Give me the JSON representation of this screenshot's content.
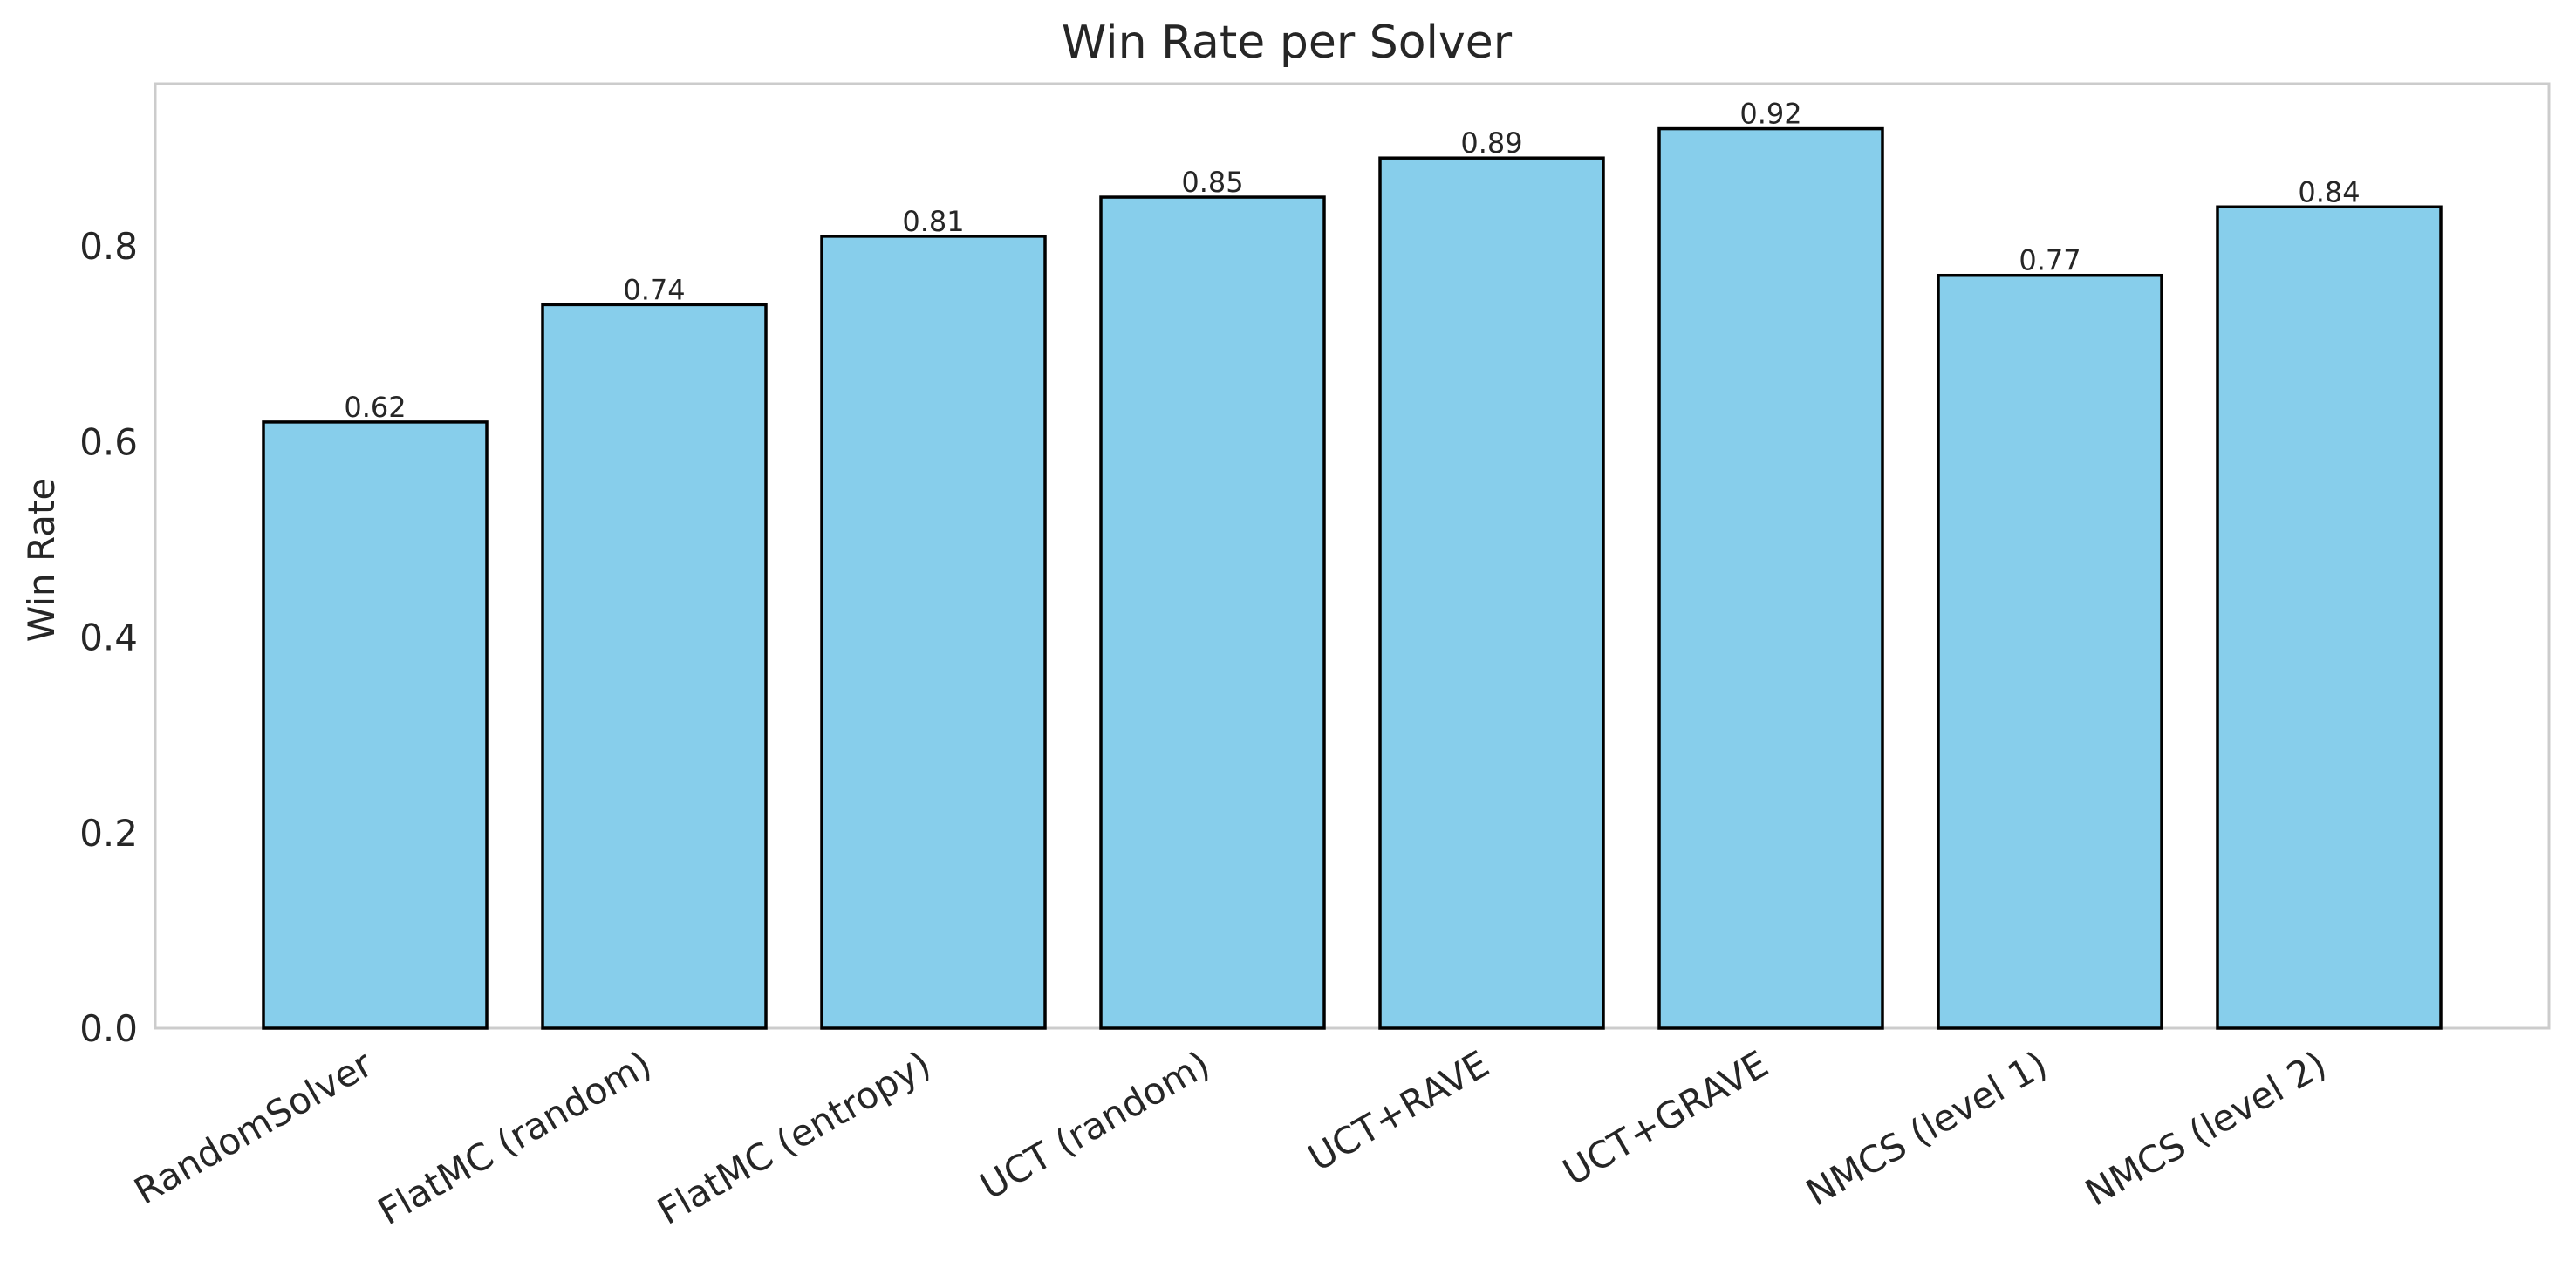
{
  "chart_data": {
    "type": "bar",
    "title": "Win Rate per Solver",
    "xlabel": "",
    "ylabel": "Win Rate",
    "categories": [
      "RandomSolver",
      "FlatMC (random)",
      "FlatMC (entropy)",
      "UCT (random)",
      "UCT+RAVE",
      "UCT+GRAVE",
      "NMCS (level 1)",
      "NMCS (level 2)"
    ],
    "values": [
      0.62,
      0.74,
      0.81,
      0.85,
      0.89,
      0.92,
      0.77,
      0.84
    ],
    "value_labels": [
      "0.62",
      "0.74",
      "0.81",
      "0.85",
      "0.89",
      "0.92",
      "0.77",
      "0.84"
    ],
    "yticks": [
      0.0,
      0.2,
      0.4,
      0.6,
      0.8
    ],
    "ytick_labels": [
      "0.0",
      "0.2",
      "0.4",
      "0.6",
      "0.8"
    ],
    "ylim": [
      0,
      0.966
    ],
    "grid": false,
    "legend": "none",
    "colors": {
      "bar_fill": "#87ceeb",
      "bar_edge": "#000000",
      "frame": "#cccccc",
      "text": "#262626"
    }
  }
}
